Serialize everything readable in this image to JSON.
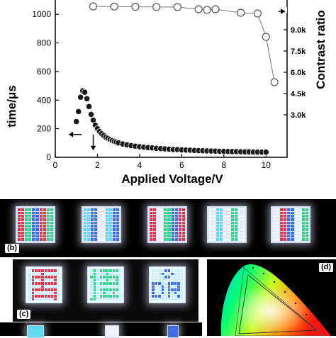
{
  "chart_data": {
    "type": "scatter",
    "title": "",
    "xlabel": "Applied Voltage/V",
    "ylabel_left": "time/μs",
    "ylabel_right": "Contrast ratio",
    "xlim": [
      0,
      11
    ],
    "ylim_left": [
      0,
      1100
    ],
    "ylim_right": [
      0,
      11100
    ],
    "x_ticks": [
      "0",
      "2",
      "4",
      "6",
      "8",
      "10"
    ],
    "y_ticks_left": [
      "0",
      "200",
      "400",
      "600",
      "800",
      "1000"
    ],
    "y_ticks_right": [
      "3.0k",
      "4.5k",
      "6.0k",
      "7.5k",
      "9.0k"
    ],
    "grid": false,
    "series": [
      {
        "axis": "left",
        "marker": "filled-circle",
        "x": [
          1.0,
          1.1,
          1.2,
          1.3,
          1.4,
          1.5,
          1.6,
          1.7,
          1.8,
          1.9,
          2.0,
          2.1,
          2.2,
          2.3,
          2.4,
          2.5,
          2.6,
          2.7,
          2.8,
          2.9,
          3.0,
          3.2,
          3.4,
          3.6,
          3.8,
          4.0,
          4.2,
          4.4,
          4.6,
          4.8,
          5.0,
          5.2,
          5.4,
          5.6,
          5.8,
          6.0,
          6.2,
          6.4,
          6.6,
          6.8,
          7.0,
          7.2,
          7.4,
          7.6,
          7.8,
          8.0,
          8.2,
          8.4,
          8.6,
          8.8,
          9.0,
          9.2,
          9.4,
          9.6,
          9.8,
          10.0
        ],
        "y": [
          250,
          320,
          420,
          465,
          455,
          410,
          355,
          300,
          260,
          225,
          200,
          180,
          165,
          152,
          141,
          132,
          124,
          117,
          111,
          106,
          101,
          93,
          87,
          82,
          78,
          74,
          71,
          68,
          66,
          63,
          61,
          59,
          57,
          55,
          54,
          52,
          51,
          50,
          48,
          47,
          46,
          45,
          44,
          43,
          42,
          42,
          41,
          40,
          40,
          39,
          38,
          38,
          37,
          37,
          36,
          36
        ]
      },
      {
        "axis": "right",
        "marker": "open-circle",
        "x": [
          1.8,
          2.8,
          3.8,
          4.8,
          5.8,
          6.8,
          7.2,
          7.6,
          8.8,
          9.6,
          10.0,
          10.4
        ],
        "y": [
          10650,
          10640,
          10620,
          10610,
          10600,
          10450,
          10400,
          10450,
          10200,
          10150,
          8500,
          5300
        ]
      }
    ],
    "annotations": [
      {
        "type": "arrow",
        "pointing": "left-axis",
        "near_x": 1.0,
        "near_y": 250
      },
      {
        "type": "arrow",
        "pointing": "right-axis",
        "near_x": 10.5,
        "near_y": 10650
      }
    ]
  },
  "panels": {
    "b": {
      "label": "(b)",
      "panel_count": 5
    },
    "c": {
      "label": "(c)",
      "panel_count": 3
    },
    "d": {
      "label": "(d)"
    }
  },
  "colors": {
    "axis": "#000000",
    "marker_fill": "#1a1a1a",
    "marker_open_stroke": "#555555",
    "photo_bg": "#000000",
    "led_red": "#e2344d",
    "led_green": "#34d38a",
    "led_blue": "#3d6ee8",
    "led_white": "#f2f6ff",
    "led_cyan": "#5fd8f0"
  }
}
